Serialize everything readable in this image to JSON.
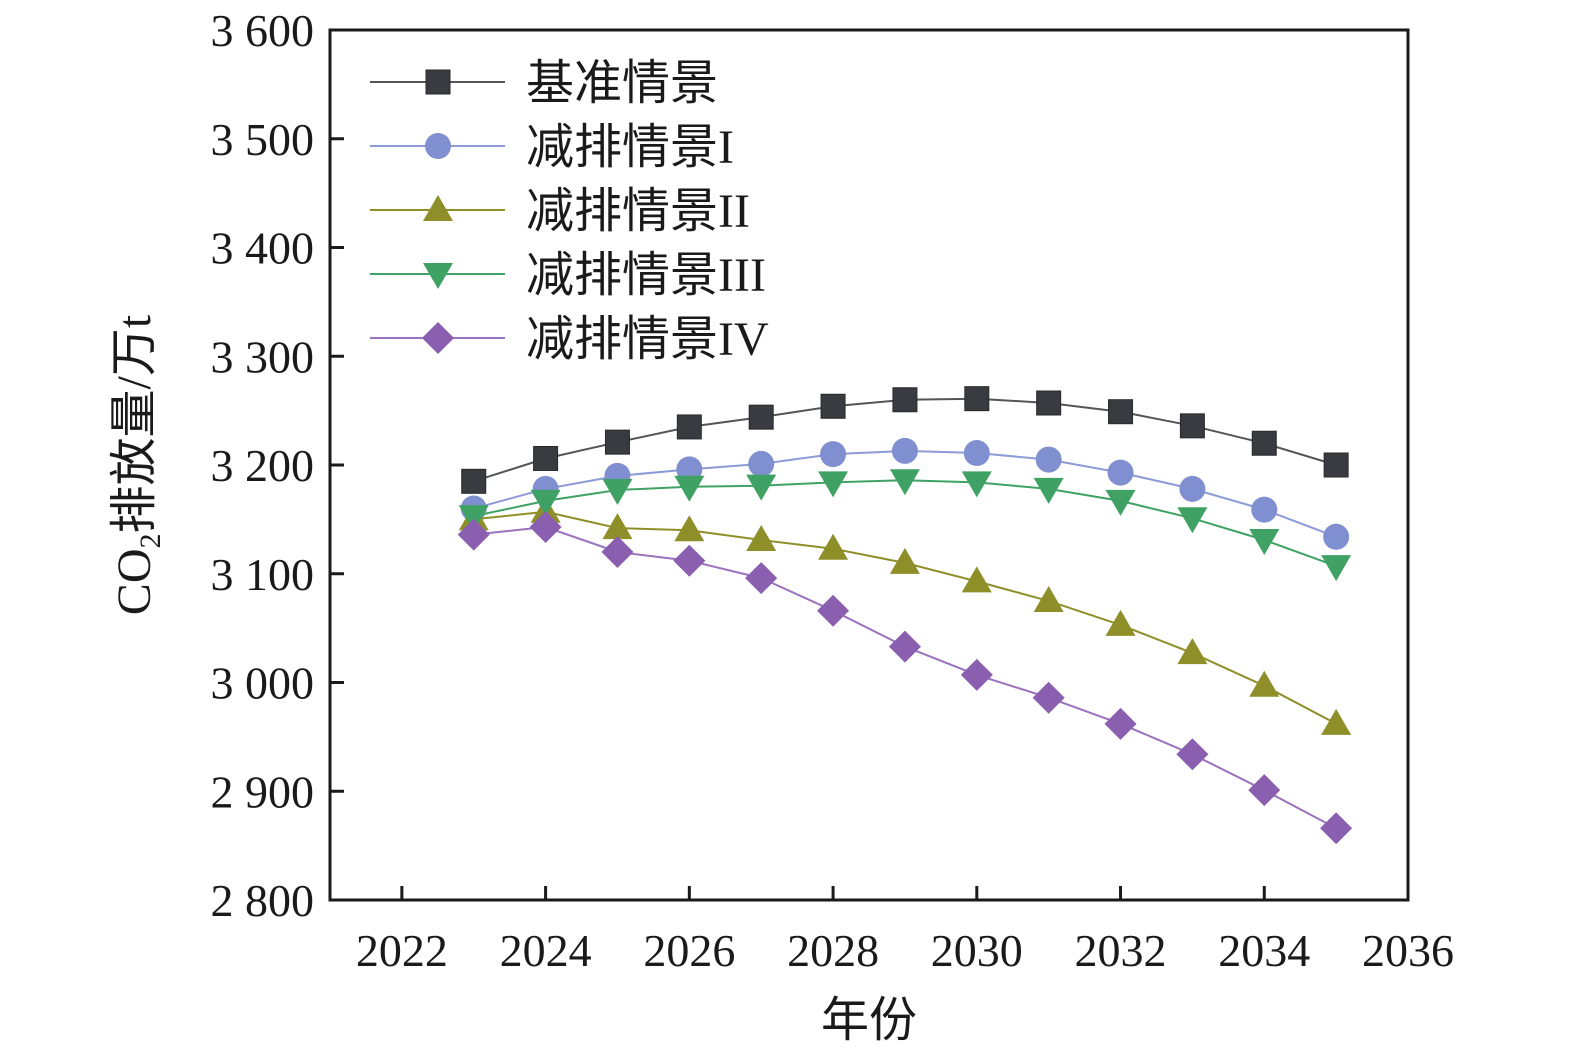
{
  "chart_data": {
    "type": "line",
    "title": "",
    "xlabel": "年份",
    "ylabel_main": "CO",
    "ylabel_sub": "2",
    "ylabel_rest": "排放量/万t",
    "xlim": [
      2021,
      2036
    ],
    "ylim": [
      2800,
      3600
    ],
    "x_ticks": [
      2022,
      2024,
      2026,
      2028,
      2030,
      2032,
      2034,
      2036
    ],
    "x_tick_labels": [
      "2022",
      "2024",
      "2026",
      "2028",
      "2030",
      "2032",
      "2034",
      "2036"
    ],
    "y_ticks": [
      2800,
      2900,
      3000,
      3100,
      3200,
      3300,
      3400,
      3500,
      3600
    ],
    "y_tick_labels": [
      "2 800",
      "2 900",
      "3 000",
      "3 100",
      "3 200",
      "3 300",
      "3 400",
      "3 500",
      "3 600"
    ],
    "grid": false,
    "legend_position": "top-left",
    "x": [
      2023,
      2024,
      2025,
      2026,
      2027,
      2028,
      2029,
      2030,
      2031,
      2032,
      2033,
      2034,
      2035
    ],
    "series": [
      {
        "name": "基准情景",
        "marker": "square",
        "color": "#3a3b40",
        "line_color": "#555555",
        "values": [
          3185,
          3206,
          3221,
          3235,
          3244,
          3254,
          3260,
          3261,
          3257,
          3249,
          3236,
          3220,
          3200
        ]
      },
      {
        "name": "减排情景I",
        "marker": "circle",
        "color": "#7f8fd0",
        "line_color": "#8c9ad6",
        "values": [
          3160,
          3178,
          3190,
          3196,
          3201,
          3210,
          3213,
          3211,
          3205,
          3193,
          3178,
          3159,
          3134
        ]
      },
      {
        "name": "减排情景II",
        "marker": "triangle-up",
        "color": "#8f8f2a",
        "line_color": "#8f8f2a",
        "values": [
          3150,
          3157,
          3142,
          3140,
          3131,
          3123,
          3110,
          3093,
          3075,
          3053,
          3027,
          2997,
          2962
        ]
      },
      {
        "name": "减排情景III",
        "marker": "triangle-down",
        "color": "#3fa264",
        "line_color": "#3fa264",
        "values": [
          3153,
          3167,
          3177,
          3180,
          3181,
          3184,
          3186,
          3184,
          3178,
          3167,
          3151,
          3131,
          3107
        ]
      },
      {
        "name": "减排情景IV",
        "marker": "diamond",
        "color": "#8a5fb0",
        "line_color": "#9a72bd",
        "values": [
          3136,
          3143,
          3120,
          3112,
          3096,
          3066,
          3033,
          3007,
          2986,
          2962,
          2934,
          2901,
          2866
        ]
      }
    ]
  }
}
